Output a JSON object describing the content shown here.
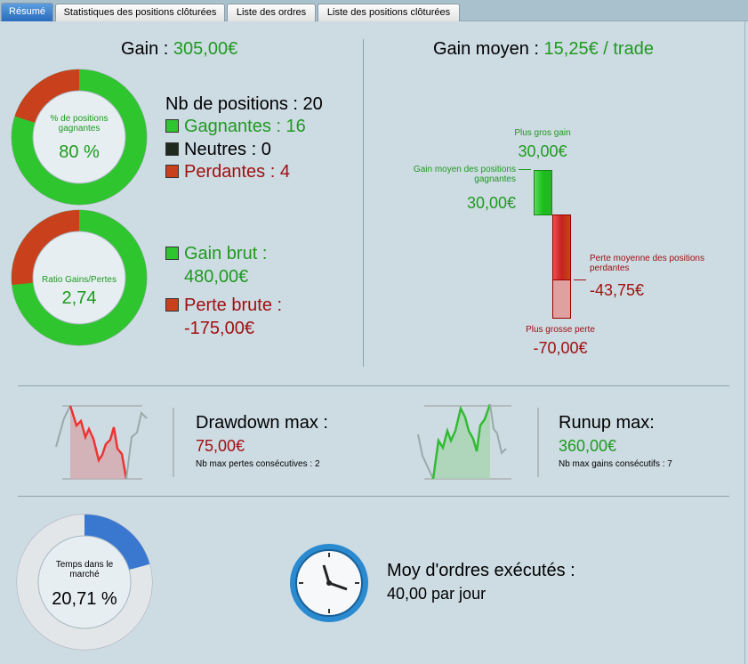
{
  "tabs": [
    {
      "label": "Résumé",
      "active": true
    },
    {
      "label": "Statistiques des positions clôturées"
    },
    {
      "label": "Liste des ordres"
    },
    {
      "label": "Liste des positions clôturées"
    }
  ],
  "colors": {
    "gain": "#1f9a1f",
    "loss": "#a01010",
    "accent": "#2a6bbd"
  },
  "gain": {
    "label": "Gain :",
    "value": "305,00€"
  },
  "win_ring": {
    "label": "% de positions gagnantes",
    "value": "80 %",
    "percent": 80
  },
  "positions": {
    "total_label": "Nb de positions : 20",
    "winners": "Gagnantes : 16",
    "neutral": "Neutres : 0",
    "losers": "Perdantes : 4"
  },
  "ratio_ring": {
    "label": "Ratio Gains/Pertes",
    "value": "2,74",
    "loss_share_percent": 26.7
  },
  "gross": {
    "gain_label": "Gain brut :",
    "gain_value": "480,00€",
    "loss_label": "Perte brute :",
    "loss_value": "-175,00€"
  },
  "avg_gain": {
    "label": "Gain moyen :",
    "value": "15,25€ / trade"
  },
  "bars": {
    "max_gain_label": "Plus gros gain",
    "max_gain": "30,00€",
    "avg_win_label": "Gain moyen des positions gagnantes",
    "avg_win": "30,00€",
    "avg_loss_label": "Perte moyenne des positions perdantes",
    "avg_loss": "-43,75€",
    "max_loss_label": "Plus grosse perte",
    "max_loss": "-70,00€"
  },
  "drawdown": {
    "label": "Drawdown max :",
    "value": "75,00€",
    "sub": "Nb max pertes consécutives : 2"
  },
  "runup": {
    "label": "Runup max:",
    "value": "360,00€",
    "sub": "Nb max gains consécutifs : 7"
  },
  "market_ring": {
    "label": "Temps dans le marché",
    "value": "20,71 %",
    "percent": 20.71
  },
  "orders": {
    "label": "Moy d'ordres exécutés :",
    "value": "40,00 par jour"
  }
}
